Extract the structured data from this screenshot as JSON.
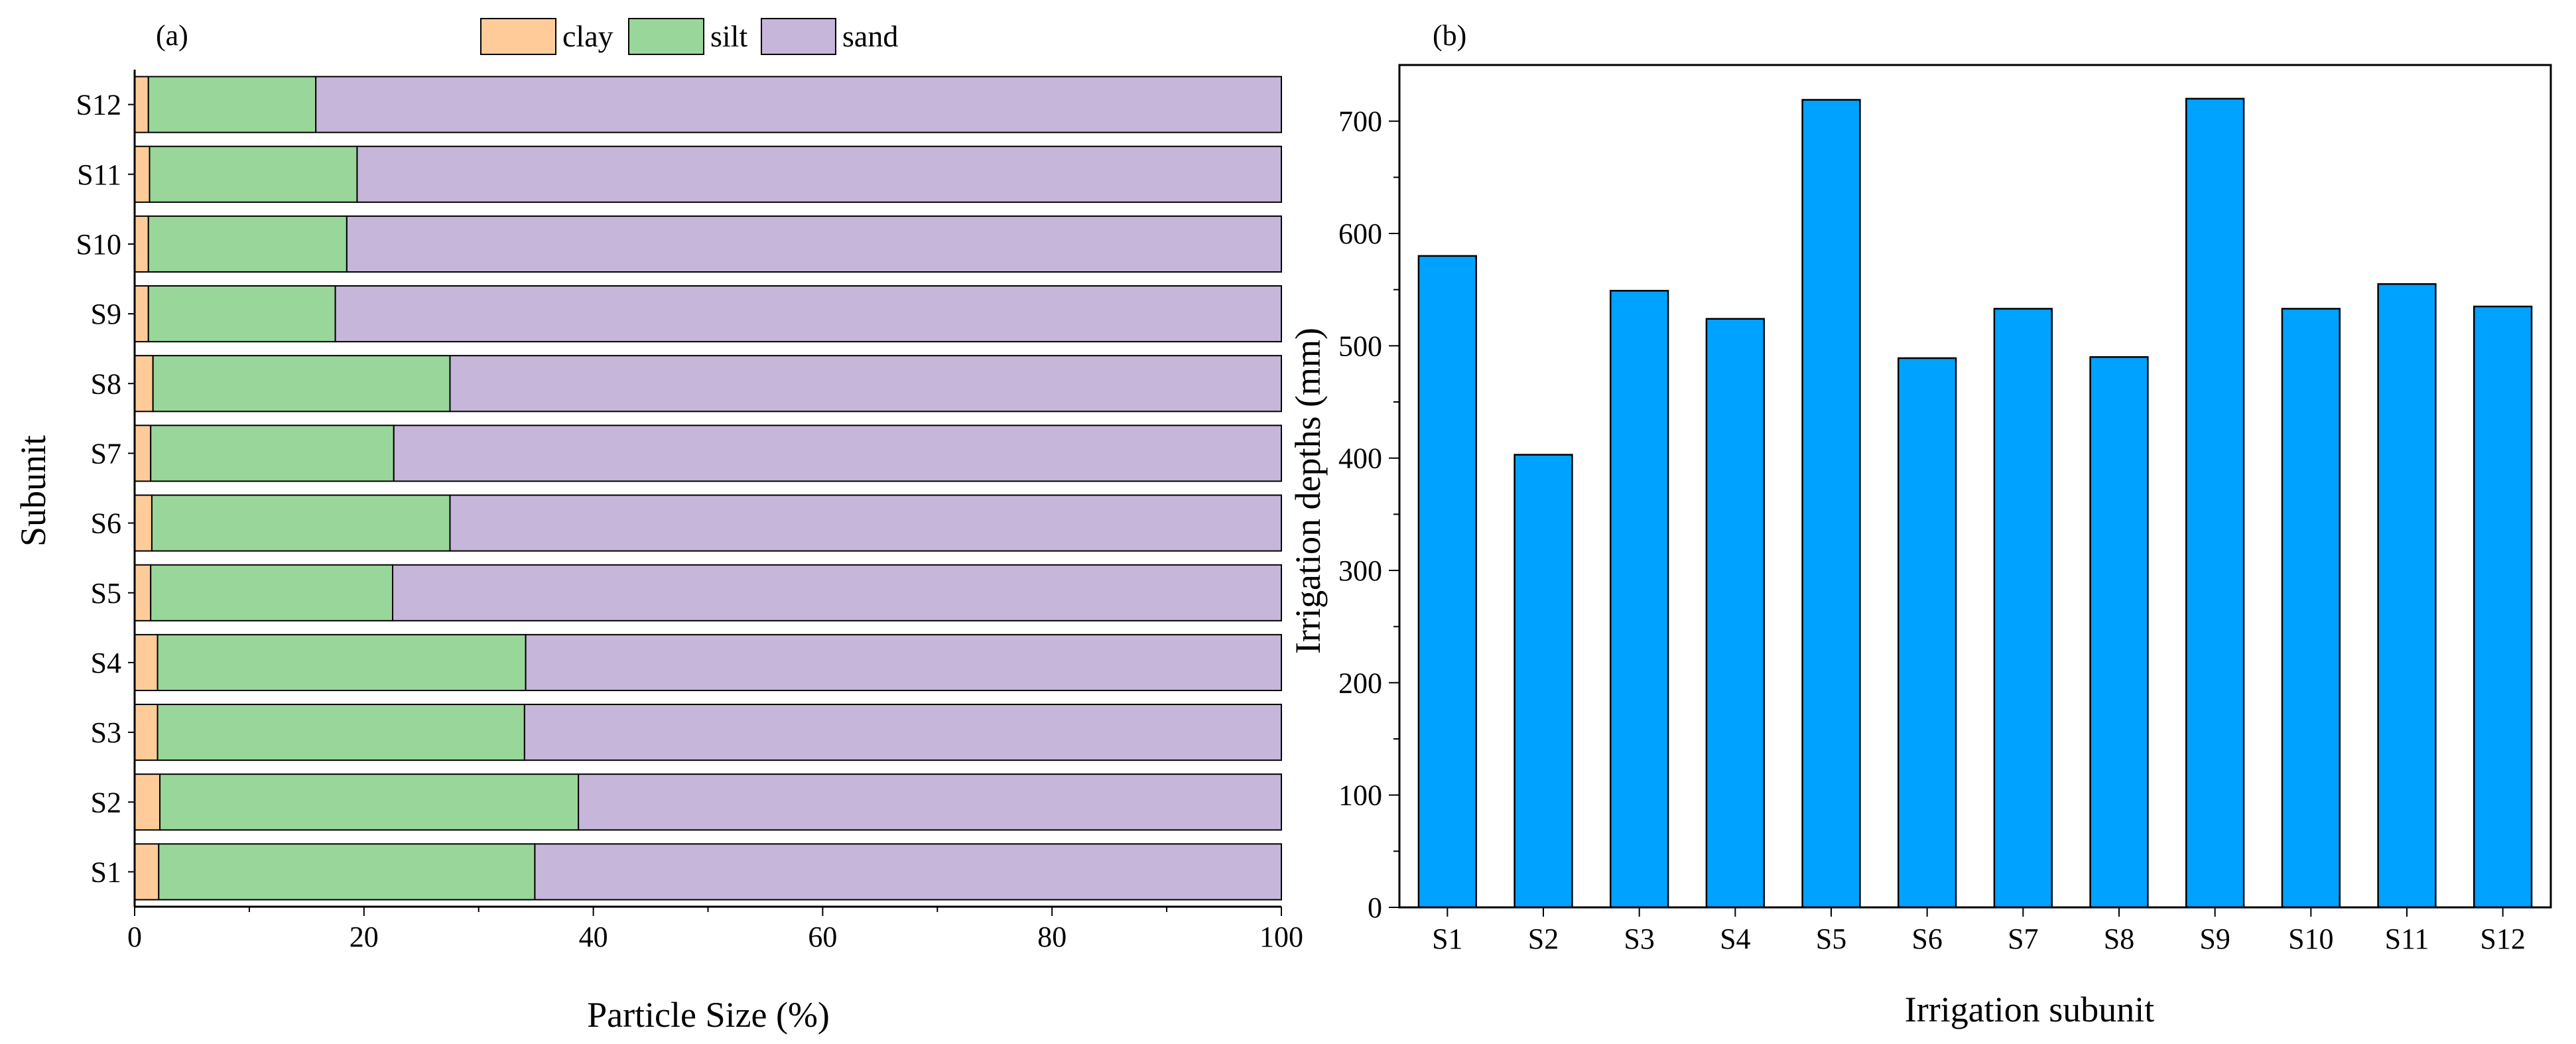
{
  "chart_data": [
    {
      "id": "a",
      "panel_label": "(a)",
      "type": "bar",
      "orientation": "horizontal",
      "stacked": true,
      "categories": [
        "S1",
        "S2",
        "S3",
        "S4",
        "S5",
        "S6",
        "S7",
        "S8",
        "S9",
        "S10",
        "S11",
        "S12"
      ],
      "series": [
        {
          "name": "clay",
          "color": "#FFCC99",
          "values": [
            2.1,
            2.2,
            2.0,
            2.0,
            1.4,
            1.5,
            1.4,
            1.6,
            1.2,
            1.2,
            1.3,
            1.2
          ]
        },
        {
          "name": "silt",
          "color": "#99D699",
          "values": [
            32.8,
            36.5,
            32.0,
            32.1,
            21.1,
            26.0,
            21.2,
            25.9,
            16.3,
            17.3,
            18.1,
            14.6
          ]
        },
        {
          "name": "sand",
          "color": "#C6B6DA",
          "values": [
            65.1,
            61.3,
            66.0,
            65.9,
            77.5,
            72.5,
            77.4,
            72.5,
            82.5,
            81.5,
            80.6,
            84.2
          ]
        }
      ],
      "xlabel": "Particle Size (%)",
      "ylabel": "Subunit",
      "xlim": [
        0,
        100
      ],
      "xticks": [
        "0",
        "20",
        "40",
        "60",
        "80",
        "100"
      ],
      "legend": {
        "position": "top",
        "entries": [
          "clay",
          "silt",
          "sand"
        ]
      }
    },
    {
      "id": "b",
      "panel_label": "(b)",
      "type": "bar",
      "orientation": "vertical",
      "categories": [
        "S1",
        "S2",
        "S3",
        "S4",
        "S5",
        "S6",
        "S7",
        "S8",
        "S9",
        "S10",
        "S11",
        "S12"
      ],
      "values": [
        580,
        403,
        549,
        524,
        719,
        489,
        533,
        490,
        720,
        533,
        555,
        535
      ],
      "color": "#00A2FF",
      "xlabel": "Irrigation subunit",
      "ylabel": "Irrigation depths (mm)",
      "ylim": [
        0,
        750
      ],
      "yticks": [
        "0",
        "100",
        "200",
        "300",
        "400",
        "500",
        "600",
        "700"
      ]
    }
  ]
}
